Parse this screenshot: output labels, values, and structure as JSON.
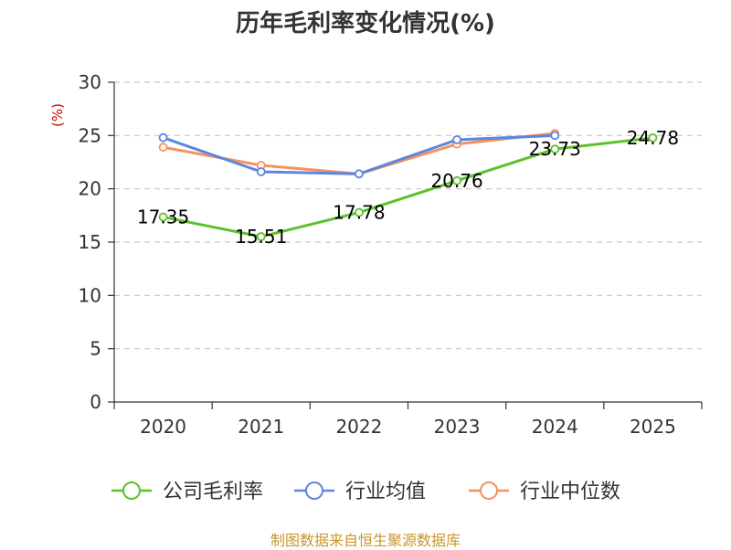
{
  "chart_data": {
    "type": "line",
    "title": "历年毛利率变化情况(%)",
    "ylabel": "(%)",
    "xlabel": "",
    "categories": [
      "2020",
      "2021",
      "2022",
      "2023",
      "2024",
      "2025"
    ],
    "ylim": [
      0,
      30
    ],
    "yticks": [
      0,
      5,
      10,
      15,
      20,
      25,
      30
    ],
    "grid": true,
    "legend_position": "bottom",
    "series": [
      {
        "name": "公司毛利率",
        "color": "#5cc12a",
        "values": [
          17.35,
          15.51,
          17.78,
          20.76,
          23.73,
          24.78
        ],
        "labels": [
          "17.35",
          "15.51",
          "17.78",
          "20.76",
          "23.73",
          "24.78"
        ]
      },
      {
        "name": "行业均值",
        "color": "#5b87e0",
        "values": [
          24.8,
          21.6,
          21.4,
          24.6,
          25.0,
          null
        ]
      },
      {
        "name": "行业中位数",
        "color": "#f5925e",
        "values": [
          23.9,
          22.2,
          21.4,
          24.2,
          25.2,
          null
        ]
      }
    ]
  },
  "source": "制图数据来自恒生聚源数据库"
}
